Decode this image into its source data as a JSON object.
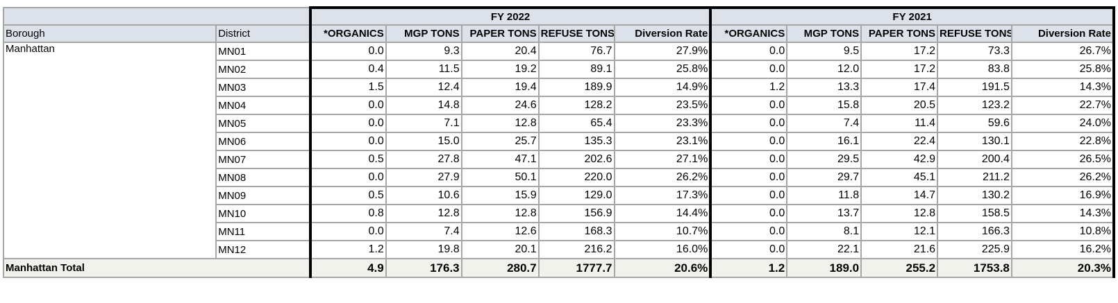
{
  "groups": {
    "fy2022": "FY 2022",
    "fy2021": "FY 2021"
  },
  "headers": {
    "borough": "Borough",
    "district": "District",
    "organics": "*ORGANICS",
    "mgp": "MGP TONS",
    "paper": "PAPER TONS",
    "refuse": "REFUSE TONS",
    "diversion": "Diversion Rate"
  },
  "borough": "Manhattan",
  "rows": [
    {
      "district": "MN01",
      "fy2022": [
        "0.0",
        "9.3",
        "20.4",
        "76.7",
        "27.9%"
      ],
      "fy2021": [
        "0.0",
        "9.5",
        "17.2",
        "73.3",
        "26.7%"
      ]
    },
    {
      "district": "MN02",
      "fy2022": [
        "0.4",
        "11.5",
        "19.2",
        "89.1",
        "25.8%"
      ],
      "fy2021": [
        "0.0",
        "12.0",
        "17.2",
        "83.8",
        "25.8%"
      ]
    },
    {
      "district": "MN03",
      "fy2022": [
        "1.5",
        "12.4",
        "19.4",
        "189.9",
        "14.9%"
      ],
      "fy2021": [
        "1.2",
        "13.3",
        "17.4",
        "191.5",
        "14.3%"
      ]
    },
    {
      "district": "MN04",
      "fy2022": [
        "0.0",
        "14.8",
        "24.6",
        "128.2",
        "23.5%"
      ],
      "fy2021": [
        "0.0",
        "15.8",
        "20.5",
        "123.2",
        "22.7%"
      ]
    },
    {
      "district": "MN05",
      "fy2022": [
        "0.0",
        "7.1",
        "12.8",
        "65.4",
        "23.3%"
      ],
      "fy2021": [
        "0.0",
        "7.4",
        "11.4",
        "59.6",
        "24.0%"
      ]
    },
    {
      "district": "MN06",
      "fy2022": [
        "0.0",
        "15.0",
        "25.7",
        "135.3",
        "23.1%"
      ],
      "fy2021": [
        "0.0",
        "16.1",
        "22.4",
        "130.1",
        "22.8%"
      ]
    },
    {
      "district": "MN07",
      "fy2022": [
        "0.5",
        "27.8",
        "47.1",
        "202.6",
        "27.1%"
      ],
      "fy2021": [
        "0.0",
        "29.5",
        "42.9",
        "200.4",
        "26.5%"
      ]
    },
    {
      "district": "MN08",
      "fy2022": [
        "0.0",
        "27.9",
        "50.1",
        "220.0",
        "26.2%"
      ],
      "fy2021": [
        "0.0",
        "29.7",
        "45.1",
        "211.2",
        "26.2%"
      ]
    },
    {
      "district": "MN09",
      "fy2022": [
        "0.5",
        "10.6",
        "15.9",
        "129.0",
        "17.3%"
      ],
      "fy2021": [
        "0.0",
        "11.8",
        "14.7",
        "130.2",
        "16.9%"
      ]
    },
    {
      "district": "MN10",
      "fy2022": [
        "0.8",
        "12.8",
        "12.8",
        "156.9",
        "14.4%"
      ],
      "fy2021": [
        "0.0",
        "13.7",
        "12.8",
        "158.5",
        "14.3%"
      ]
    },
    {
      "district": "MN11",
      "fy2022": [
        "0.0",
        "7.4",
        "12.6",
        "168.3",
        "10.7%"
      ],
      "fy2021": [
        "0.0",
        "8.1",
        "12.1",
        "166.3",
        "10.8%"
      ]
    },
    {
      "district": "MN12",
      "fy2022": [
        "1.2",
        "19.8",
        "20.1",
        "216.2",
        "16.0%"
      ],
      "fy2021": [
        "0.0",
        "22.1",
        "21.6",
        "225.9",
        "16.2%"
      ]
    }
  ],
  "total": {
    "label": "Manhattan Total",
    "fy2022": [
      "4.9",
      "176.3",
      "280.7",
      "1777.7",
      "20.6%"
    ],
    "fy2021": [
      "1.2",
      "189.0",
      "255.2",
      "1753.8",
      "20.3%"
    ]
  }
}
